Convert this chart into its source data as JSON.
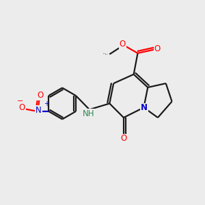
{
  "bg_color": "#ececec",
  "bond_color": "#1a1a1a",
  "bond_width": 1.6,
  "atom_colors": {
    "O": "#ff0000",
    "N": "#0000cd",
    "NH": "#2e8b57",
    "C": "#1a1a1a"
  },
  "figsize": [
    3.0,
    3.0
  ],
  "dpi": 100,
  "xlim": [
    0,
    10
  ],
  "ylim": [
    0,
    10
  ]
}
